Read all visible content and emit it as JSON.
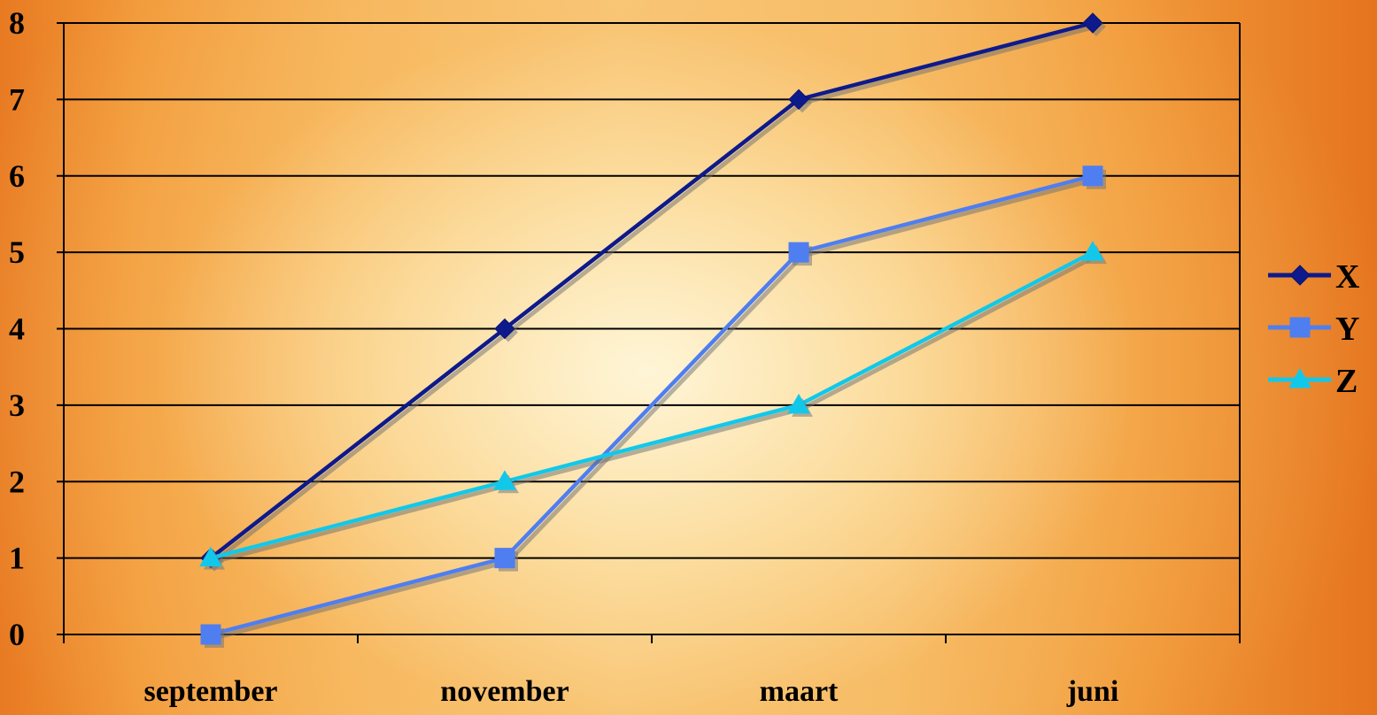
{
  "chart_data": {
    "type": "line",
    "categories": [
      "september",
      "november",
      "maart",
      "juni"
    ],
    "series": [
      {
        "name": "X",
        "values": [
          1,
          4,
          7,
          8
        ],
        "color": "#0d1a8c",
        "marker": "diamond"
      },
      {
        "name": "Y",
        "values": [
          0,
          1,
          5,
          6
        ],
        "color": "#4f7ef0",
        "marker": "square"
      },
      {
        "name": "Z",
        "values": [
          1,
          2,
          3,
          5
        ],
        "color": "#12c8ea",
        "marker": "triangle"
      }
    ],
    "y_ticks": [
      0,
      1,
      2,
      3,
      4,
      5,
      6,
      7,
      8
    ],
    "ylim": [
      0,
      8
    ],
    "grid": true,
    "legend_position": "right",
    "title": "",
    "xlabel": "",
    "ylabel": ""
  }
}
